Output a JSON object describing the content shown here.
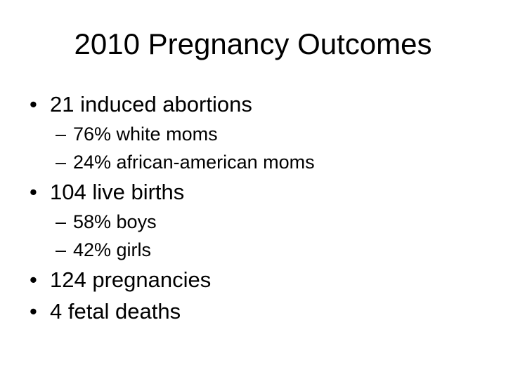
{
  "slide": {
    "title": "2010 Pregnancy Outcomes",
    "bullets": [
      {
        "level": 1,
        "marker": "•",
        "text": "21 induced abortions"
      },
      {
        "level": 2,
        "marker": "–",
        "text": "76% white moms"
      },
      {
        "level": 2,
        "marker": "–",
        "text": "24% african-american moms"
      },
      {
        "level": 1,
        "marker": "•",
        "text": "104 live births"
      },
      {
        "level": 2,
        "marker": "–",
        "text": "58% boys"
      },
      {
        "level": 2,
        "marker": "–",
        "text": "42% girls"
      },
      {
        "level": 1,
        "marker": "•",
        "text": "124 pregnancies"
      },
      {
        "level": 1,
        "marker": "•",
        "text": "4 fetal deaths"
      }
    ],
    "colors": {
      "background": "#ffffff",
      "text": "#000000"
    }
  }
}
